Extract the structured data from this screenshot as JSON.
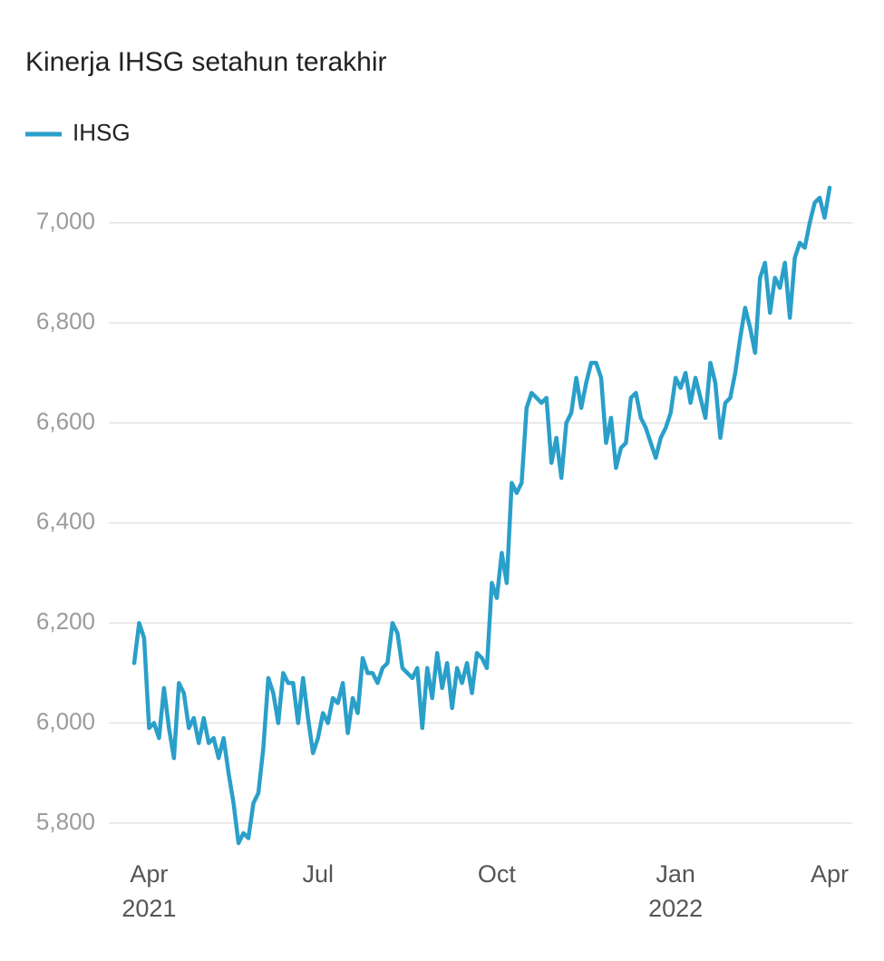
{
  "chart_data": {
    "type": "line",
    "title": "Kinerja IHSG setahun terakhir",
    "categories": [
      null,
      null,
      null,
      "Apr 2021",
      null,
      null,
      null,
      null,
      null,
      null,
      null,
      null,
      null,
      null,
      null,
      null,
      null,
      null,
      null,
      null,
      null,
      null,
      null,
      null,
      null,
      null,
      null,
      null,
      null,
      null,
      null,
      null,
      null,
      null,
      null,
      null,
      null,
      "Jul",
      null,
      null,
      null,
      null,
      null,
      null,
      null,
      null,
      null,
      null,
      null,
      null,
      null,
      null,
      null,
      null,
      null,
      null,
      null,
      null,
      null,
      null,
      null,
      null,
      null,
      null,
      null,
      null,
      null,
      null,
      null,
      null,
      null,
      null,
      null,
      "Oct",
      null,
      null,
      null,
      null,
      null,
      null,
      null,
      null,
      null,
      null,
      null,
      null,
      null,
      null,
      null,
      null,
      null,
      null,
      null,
      null,
      null,
      null,
      null,
      null,
      null,
      null,
      null,
      null,
      null,
      null,
      null,
      null,
      null,
      null,
      null,
      "Jan 2022",
      null,
      null,
      null,
      null,
      null,
      null,
      null,
      null,
      null,
      null,
      null,
      null,
      null,
      null,
      null,
      null,
      null,
      null,
      null,
      null,
      null,
      null,
      null,
      null,
      null,
      null,
      null,
      null,
      null,
      null,
      "Apr"
    ],
    "series": [
      {
        "name": "IHSG",
        "color": "#2a9fc9",
        "values": [
          6120,
          6200,
          6170,
          5990,
          6000,
          5970,
          6070,
          5990,
          5930,
          6080,
          6060,
          5990,
          6010,
          5960,
          6010,
          5960,
          5970,
          5930,
          5970,
          5900,
          5840,
          5760,
          5780,
          5770,
          5840,
          5860,
          5950,
          6090,
          6060,
          6000,
          6100,
          6080,
          6080,
          6000,
          6090,
          6010,
          5940,
          5970,
          6020,
          6000,
          6050,
          6040,
          6080,
          5980,
          6050,
          6020,
          6130,
          6100,
          6100,
          6080,
          6110,
          6120,
          6200,
          6180,
          6110,
          6100,
          6090,
          6110,
          5990,
          6110,
          6050,
          6140,
          6070,
          6120,
          6030,
          6110,
          6080,
          6120,
          6060,
          6140,
          6130,
          6110,
          6280,
          6250,
          6340,
          6280,
          6480,
          6460,
          6480,
          6630,
          6660,
          6650,
          6640,
          6650,
          6520,
          6570,
          6490,
          6600,
          6620,
          6690,
          6630,
          6680,
          6720,
          6720,
          6690,
          6560,
          6610,
          6510,
          6550,
          6560,
          6650,
          6660,
          6610,
          6590,
          6560,
          6530,
          6570,
          6590,
          6620,
          6690,
          6670,
          6700,
          6640,
          6690,
          6650,
          6610,
          6720,
          6680,
          6570,
          6640,
          6650,
          6700,
          6770,
          6830,
          6790,
          6740,
          6890,
          6920,
          6820,
          6890,
          6870,
          6920,
          6810,
          6930,
          6960,
          6950,
          7000,
          7040,
          7050,
          7010,
          7070
        ]
      }
    ],
    "ylim": [
      5760,
      7110
    ],
    "yticks": [
      {
        "value": 5800,
        "label": "5,800"
      },
      {
        "value": 6000,
        "label": "6,000"
      },
      {
        "value": 6200,
        "label": "6,200"
      },
      {
        "value": 6400,
        "label": "6,400"
      },
      {
        "value": 6600,
        "label": "6,600"
      },
      {
        "value": 6800,
        "label": "6,800"
      },
      {
        "value": 7000,
        "label": "7,000"
      }
    ],
    "grid": true
  }
}
